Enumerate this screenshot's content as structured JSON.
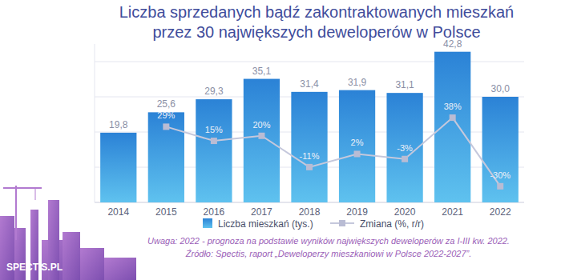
{
  "chart_data": {
    "type": "bar",
    "title": "Liczba sprzedanych bądź zakontraktowanych mieszkań\nprzez 30 największych deweloperów w Polsce",
    "categories": [
      "2014",
      "2015",
      "2016",
      "2017",
      "2018",
      "2019",
      "2020",
      "2021",
      "2022"
    ],
    "series": [
      {
        "name": "Liczba mieszkań (tys.)",
        "type": "bar",
        "color": "#2b82d6",
        "values": [
          19.8,
          25.6,
          29.3,
          35.1,
          31.4,
          31.9,
          31.1,
          42.8,
          30.0
        ],
        "value_labels": [
          "19,8",
          "25,6",
          "29,3",
          "35,1",
          "31,4",
          "31,9",
          "31,1",
          "42,8",
          "30,0"
        ]
      },
      {
        "name": "Zmiana (%, r/r)",
        "type": "line",
        "axis": "y2",
        "color": "#c5c8dc",
        "marker": "square",
        "values": [
          null,
          29,
          15,
          20,
          -11,
          2,
          -3,
          38,
          -30
        ],
        "value_labels": [
          null,
          "29%",
          "15%",
          "20%",
          "-11%",
          "2%",
          "-3%",
          "38%",
          "-30%"
        ]
      }
    ],
    "ylim": [
      0,
      45
    ],
    "yticks": [
      0,
      10,
      20,
      30,
      40
    ],
    "y2lim": [
      -46,
      111
    ],
    "grid": true,
    "data_labels": true,
    "tick_labels": "x",
    "legend": "bottom",
    "annotations": [
      "Uwaga: 2022 - prognoza na podstawie wyników największych deweloperów za I-III kw. 2022.",
      "Źródło: Spectis, raport „Deweloperzy mieszkaniowi w Polsce 2022-2027”.",
      "SPECTIS.PL"
    ]
  }
}
